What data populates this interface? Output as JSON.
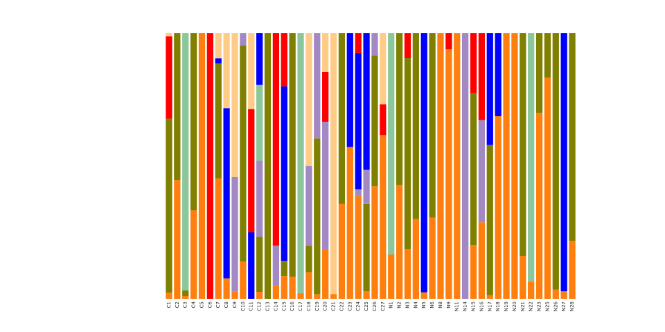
{
  "chart_data": {
    "type": "bar",
    "stacked": true,
    "normalized": true,
    "ylim": [
      0,
      1
    ],
    "grid": false,
    "legend": "none",
    "title": "",
    "xlabel": "",
    "ylabel": "",
    "categories": [
      "C1",
      "C2",
      "C3",
      "C4",
      "C5",
      "C6",
      "C7",
      "C8",
      "C9",
      "C10",
      "C11",
      "C12",
      "C13",
      "C14",
      "C15",
      "C16",
      "C17",
      "C18",
      "C19",
      "C20",
      "C21",
      "C22",
      "C23",
      "C24",
      "C25",
      "C26",
      "C27",
      "N1",
      "N2",
      "N3",
      "N4",
      "N5",
      "N6",
      "N8",
      "N9",
      "N11",
      "N14",
      "N15",
      "N16",
      "N17",
      "N18",
      "N19",
      "N20",
      "N21",
      "N22",
      "N23",
      "N25",
      "N26",
      "N27",
      "N28"
    ],
    "palette": [
      "#ff7f0e",
      "#808000",
      "#a389c4",
      "#8cc69b",
      "#0000ff",
      "#ff0000",
      "#ffcc88",
      "#88aadd",
      "#ff9988",
      "#aaaaaa",
      "#ff1493",
      "#9b30ff",
      "#c0c0c0",
      "#1e90ff",
      "#00ff7f",
      "#8b4513",
      "#00c0ff",
      "#20b2aa",
      "#ffff99",
      "#7fffd4"
    ],
    "series": [
      {
        "values": [
          0.02,
          0.17,
          0.01,
          0.01,
          0.21,
          0.0,
          0.24,
          0.06,
          0.02,
          0.09,
          0.0,
          0.02,
          0.0,
          0.02,
          0.06,
          0.02,
          0.01,
          0.01,
          0.01,
          0.09,
          0.01,
          0.1,
          0.04,
          0.31,
          0.02,
          0.25,
          0.53,
          0.07,
          0.15,
          0.06,
          0.09,
          0.01,
          0.15,
          0.39,
          0.62,
          0.08,
          0.0,
          0.17,
          0.15,
          0.01,
          0.11,
          0.41,
          0.02,
          0.1,
          0.06,
          0.63,
          0.8,
          0.01,
          0.02,
          0.07
        ]
      },
      {
        "values": [
          0.57,
          0.21,
          0.02,
          0.02,
          0.0,
          0.0,
          0.23,
          0.0,
          0.0,
          0.52,
          0.0,
          0.16,
          0.05,
          0.0,
          0.04,
          0.22,
          0.0,
          0.01,
          0.34,
          0.0,
          0.0,
          0.18,
          0.0,
          0.0,
          0.23,
          0.29,
          0.0,
          0.0,
          0.2,
          0.23,
          0.21,
          0.0,
          0.34,
          0.0,
          0.0,
          0.0,
          0.0,
          0.48,
          0.0,
          0.43,
          0.0,
          0.0,
          0.0,
          0.52,
          0.0,
          0.27,
          0.16,
          0.28,
          0.0,
          0.25
        ]
      },
      {
        "values": [
          0.0,
          0.0,
          0.0,
          0.0,
          0.0,
          0.0,
          0.0,
          0.0,
          0.31,
          0.03,
          0.0,
          0.22,
          0.0,
          0.06,
          0.0,
          0.0,
          0.0,
          0.03,
          0.23,
          0.23,
          0.0,
          0.0,
          0.0,
          0.02,
          0.09,
          0.05,
          0.0,
          0.0,
          0.0,
          0.0,
          0.0,
          0.0,
          0.0,
          0.0,
          0.0,
          0.0,
          0.21,
          0.0,
          0.2,
          0.0,
          0.0,
          0.0,
          0.0,
          0.0,
          0.0,
          0.0,
          0.0,
          0.0,
          0.0,
          0.0
        ]
      },
      {
        "values": [
          0.0,
          0.0,
          0.93,
          0.0,
          0.0,
          0.0,
          0.0,
          0.0,
          0.0,
          0.0,
          0.0,
          0.22,
          0.0,
          0.0,
          0.0,
          0.0,
          0.46,
          0.0,
          0.0,
          0.0,
          0.0,
          0.0,
          0.0,
          0.0,
          0.0,
          0.0,
          0.0,
          0.35,
          0.0,
          0.0,
          0.0,
          0.0,
          0.0,
          0.0,
          0.0,
          0.0,
          0.0,
          0.0,
          0.0,
          0.0,
          0.0,
          0.0,
          0.0,
          0.0,
          0.88,
          0.0,
          0.0,
          0.0,
          0.0,
          0.0
        ]
      },
      {
        "values": [
          0.0,
          0.0,
          0.0,
          0.0,
          0.0,
          0.0,
          0.01,
          0.5,
          0.0,
          0.0,
          0.07,
          0.15,
          0.0,
          0.0,
          0.46,
          0.0,
          0.0,
          0.0,
          0.0,
          0.0,
          0.0,
          0.0,
          0.03,
          0.41,
          0.36,
          0.0,
          0.0,
          0.0,
          0.0,
          0.0,
          0.0,
          0.4,
          0.0,
          0.0,
          0.0,
          0.0,
          0.0,
          0.0,
          0.0,
          0.32,
          0.05,
          0.0,
          0.0,
          0.0,
          0.0,
          0.0,
          0.0,
          0.0,
          0.69,
          0.0
        ]
      },
      {
        "values": [
          0.27,
          0.0,
          0.0,
          0.0,
          0.0,
          0.56,
          0.0,
          0.0,
          0.0,
          0.0,
          0.13,
          0.0,
          0.0,
          0.32,
          0.14,
          0.0,
          0.0,
          0.0,
          0.0,
          0.09,
          0.0,
          0.0,
          0.0,
          0.06,
          0.0,
          0.0,
          0.1,
          0.0,
          0.0,
          0.03,
          0.0,
          0.0,
          0.0,
          0.0,
          0.04,
          0.0,
          0.0,
          0.19,
          0.17,
          0.0,
          0.0,
          0.0,
          0.0,
          0.0,
          0.0,
          0.0,
          0.0,
          0.0,
          0.0,
          0.0
        ]
      },
      {
        "values": [
          0.01,
          0.0,
          0.0,
          0.0,
          0.0,
          0.0,
          0.05,
          0.22,
          0.39,
          0.0,
          0.08,
          0.0,
          0.0,
          0.0,
          0.0,
          0.0,
          0.0,
          0.05,
          0.0,
          0.07,
          0.55,
          0.0,
          0.0,
          0.0,
          0.0,
          0.0,
          0.23,
          0.0,
          0.0,
          0.0,
          0.0,
          0.0,
          0.0,
          0.0,
          0.0,
          0.0,
          0.0,
          0.0,
          0.0,
          0.0,
          0.0,
          0.0,
          0.0,
          0.0,
          0.0,
          0.0,
          0.0,
          0.0,
          0.0,
          0.0
        ]
      }
    ]
  }
}
